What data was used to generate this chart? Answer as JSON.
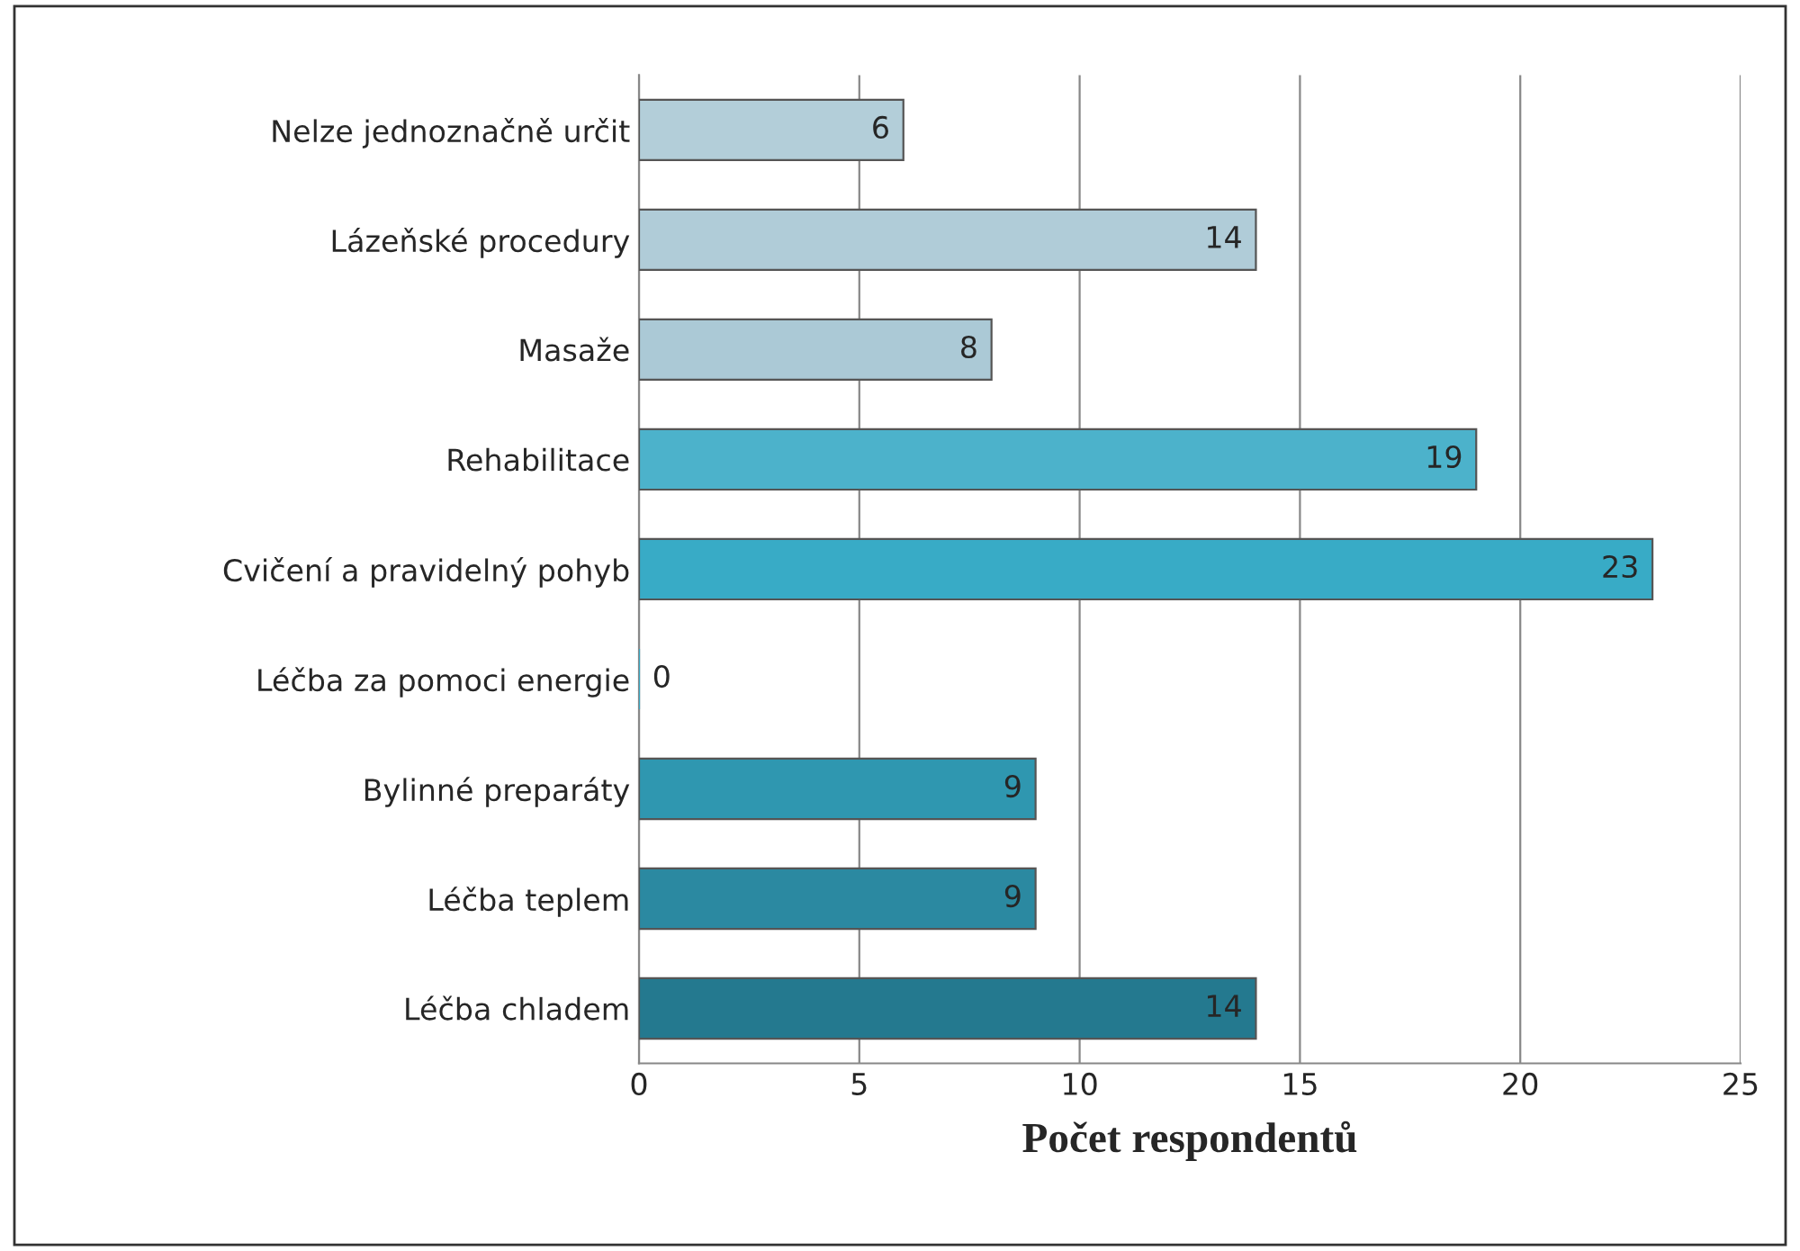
{
  "chart_data": {
    "type": "bar",
    "orientation": "horizontal",
    "xlabel": "Počet respondentů",
    "categories": [
      "Nelze jednoznačně určit",
      "Lázeňské procedury",
      "Masaže",
      "Rehabilitace",
      "Cvičení a pravidelný pohyb",
      "Léčba za pomoci energie",
      "Bylinné preparáty",
      "Léčba teplem",
      "Léčba chladem"
    ],
    "values": [
      6,
      14,
      8,
      19,
      23,
      0,
      9,
      9,
      14
    ],
    "colors": [
      "#b3ced9",
      "#b0ccd8",
      "#abc9d6",
      "#4cb2cb",
      "#38abc6",
      "#3aa5bf",
      "#2f97b0",
      "#2b89a1",
      "#24798f"
    ],
    "xlim": [
      0,
      25
    ],
    "xticks": [
      0,
      5,
      10,
      15,
      20,
      25
    ],
    "grid": "x",
    "data_labels": true
  }
}
